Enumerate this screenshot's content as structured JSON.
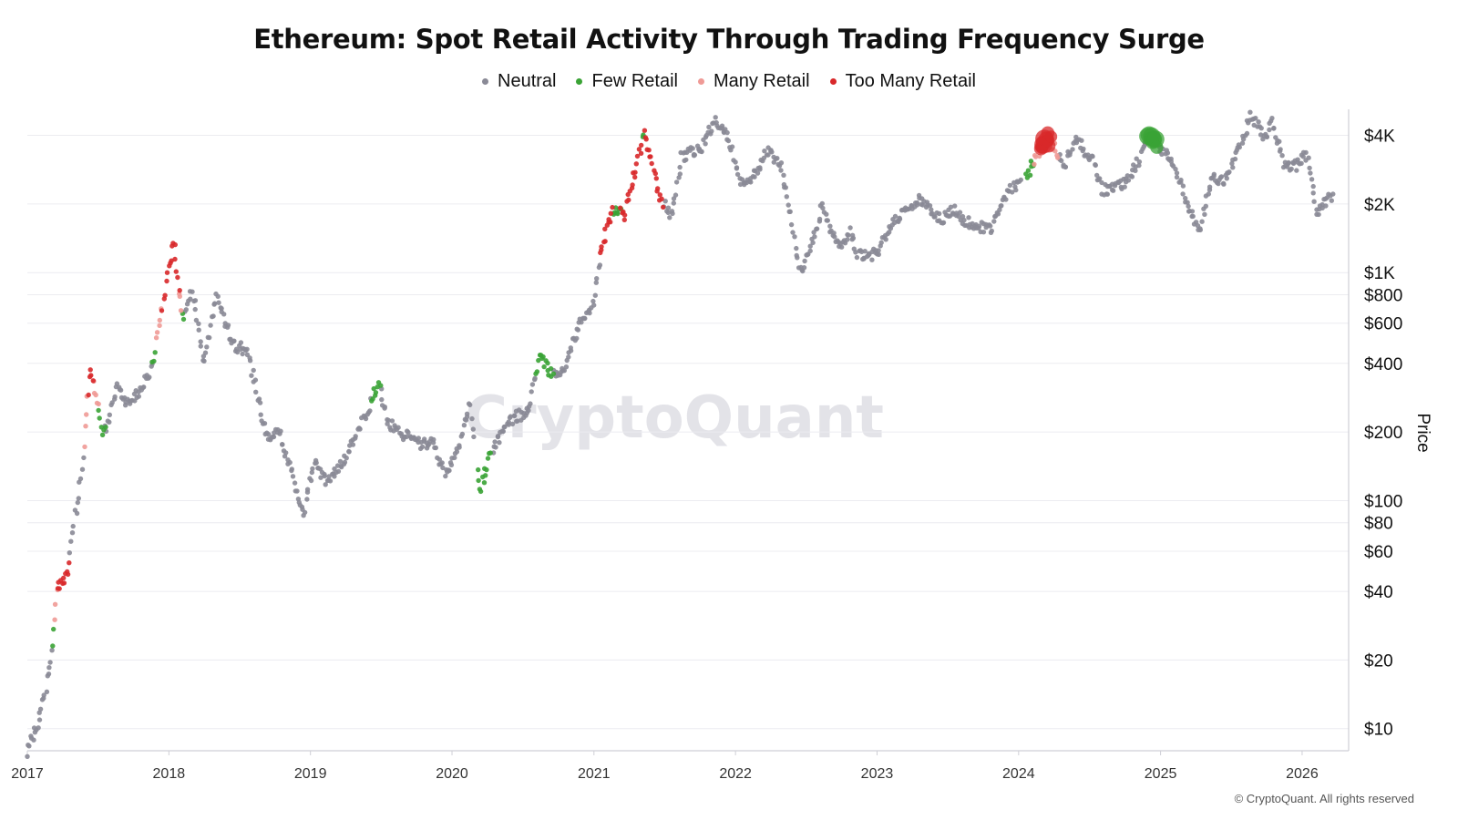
{
  "chart_data": {
    "type": "scatter",
    "title": "Ethereum: Spot Retail Activity Through Trading Frequency Surge",
    "ylabel": "Price",
    "yscale": "log",
    "ylim": [
      8,
      5200
    ],
    "xlim": [
      "2017-01-01",
      "2026-05-01"
    ],
    "yticks": [
      10,
      20,
      40,
      60,
      80,
      100,
      200,
      400,
      600,
      800,
      1000,
      2000,
      4000
    ],
    "ytick_labels": [
      "$10",
      "$20",
      "$40",
      "$60",
      "$80",
      "$100",
      "$200",
      "$400",
      "$600",
      "$800",
      "$1K",
      "$2K",
      "$4K"
    ],
    "xticks": [
      "2017-01-01",
      "2018-01-01",
      "2019-01-01",
      "2020-01-01",
      "2021-01-01",
      "2022-01-01",
      "2023-01-01",
      "2024-01-01",
      "2025-01-01",
      "2026-01-01"
    ],
    "xtick_labels": [
      "2017",
      "2018",
      "2019",
      "2020",
      "2021",
      "2022",
      "2023",
      "2024",
      "2025",
      "2026"
    ],
    "grid": true,
    "legend_position": "top-center",
    "price_path": [
      [
        "2017-01-01",
        8
      ],
      [
        "2017-02-01",
        11
      ],
      [
        "2017-03-01",
        19
      ],
      [
        "2017-03-20",
        42
      ],
      [
        "2017-04-15",
        48
      ],
      [
        "2017-05-01",
        80
      ],
      [
        "2017-05-20",
        125
      ],
      [
        "2017-06-12",
        390
      ],
      [
        "2017-07-15",
        190
      ],
      [
        "2017-08-01",
        230
      ],
      [
        "2017-08-20",
        310
      ],
      [
        "2017-09-15",
        270
      ],
      [
        "2017-10-15",
        300
      ],
      [
        "2017-11-15",
        360
      ],
      [
        "2017-12-15",
        700
      ],
      [
        "2018-01-13",
        1380
      ],
      [
        "2018-02-06",
        620
      ],
      [
        "2018-03-01",
        860
      ],
      [
        "2018-04-01",
        390
      ],
      [
        "2018-05-05",
        800
      ],
      [
        "2018-06-15",
        480
      ],
      [
        "2018-07-20",
        460
      ],
      [
        "2018-08-20",
        275
      ],
      [
        "2018-09-12",
        185
      ],
      [
        "2018-10-10",
        210
      ],
      [
        "2018-11-15",
        130
      ],
      [
        "2018-12-14",
        85
      ],
      [
        "2019-01-10",
        150
      ],
      [
        "2019-02-10",
        120
      ],
      [
        "2019-03-15",
        138
      ],
      [
        "2019-04-15",
        170
      ],
      [
        "2019-05-15",
        220
      ],
      [
        "2019-06-25",
        330
      ],
      [
        "2019-07-20",
        220
      ],
      [
        "2019-08-15",
        200
      ],
      [
        "2019-09-15",
        190
      ],
      [
        "2019-10-15",
        175
      ],
      [
        "2019-11-15",
        180
      ],
      [
        "2019-12-15",
        130
      ],
      [
        "2020-01-15",
        165
      ],
      [
        "2020-02-15",
        265
      ],
      [
        "2020-03-13",
        110
      ],
      [
        "2020-04-15",
        170
      ],
      [
        "2020-05-15",
        205
      ],
      [
        "2020-06-15",
        235
      ],
      [
        "2020-07-15",
        240
      ],
      [
        "2020-08-15",
        430
      ],
      [
        "2020-09-15",
        360
      ],
      [
        "2020-10-15",
        380
      ],
      [
        "2020-11-25",
        600
      ],
      [
        "2020-12-31",
        735
      ],
      [
        "2021-01-20",
        1300
      ],
      [
        "2021-02-20",
        1900
      ],
      [
        "2021-03-20",
        1800
      ],
      [
        "2021-05-12",
        4200
      ],
      [
        "2021-06-20",
        2100
      ],
      [
        "2021-07-20",
        1800
      ],
      [
        "2021-08-15",
        3200
      ],
      [
        "2021-09-10",
        3400
      ],
      [
        "2021-10-10",
        3600
      ],
      [
        "2021-11-10",
        4800
      ],
      [
        "2021-12-15",
        3900
      ],
      [
        "2022-01-20",
        2400
      ],
      [
        "2022-02-20",
        2700
      ],
      [
        "2022-03-28",
        3450
      ],
      [
        "2022-05-01",
        2800
      ],
      [
        "2022-05-20",
        1950
      ],
      [
        "2022-06-18",
        1000
      ],
      [
        "2022-07-15",
        1300
      ],
      [
        "2022-08-13",
        1950
      ],
      [
        "2022-09-20",
        1300
      ],
      [
        "2022-10-25",
        1500
      ],
      [
        "2022-11-10",
        1200
      ],
      [
        "2022-12-30",
        1200
      ],
      [
        "2023-02-15",
        1650
      ],
      [
        "2023-04-15",
        2100
      ],
      [
        "2023-06-15",
        1700
      ],
      [
        "2023-07-15",
        1900
      ],
      [
        "2023-08-20",
        1650
      ],
      [
        "2023-10-20",
        1550
      ],
      [
        "2023-12-10",
        2300
      ],
      [
        "2024-01-15",
        2500
      ],
      [
        "2024-03-13",
        4000
      ],
      [
        "2024-05-01",
        2950
      ],
      [
        "2024-05-27",
        3900
      ],
      [
        "2024-07-10",
        3100
      ],
      [
        "2024-08-05",
        2300
      ],
      [
        "2024-09-10",
        2350
      ],
      [
        "2024-10-15",
        2600
      ],
      [
        "2024-12-05",
        4000
      ],
      [
        "2025-01-15",
        3300
      ],
      [
        "2025-02-15",
        2700
      ],
      [
        "2025-03-15",
        1900
      ],
      [
        "2025-04-09",
        1500
      ],
      [
        "2025-05-15",
        2600
      ],
      [
        "2025-06-15",
        2500
      ],
      [
        "2025-07-15",
        3300
      ],
      [
        "2025-08-24",
        4900
      ],
      [
        "2025-09-25",
        3900
      ],
      [
        "2025-10-15",
        4500
      ],
      [
        "2025-11-15",
        3000
      ],
      [
        "2025-12-15",
        2950
      ],
      [
        "2026-01-15",
        3300
      ],
      [
        "2026-02-06",
        1850
      ],
      [
        "2026-03-20",
        2200
      ]
    ],
    "series": [
      {
        "name": "Neutral",
        "color": "#8a8a96",
        "marker_scale": 1.0,
        "ranges": [
          [
            "2017-01-01",
            "2017-03-05"
          ],
          [
            "2017-04-22",
            "2017-05-25"
          ],
          [
            "2017-07-22",
            "2017-11-20"
          ],
          [
            "2018-02-12",
            "2019-06-05"
          ],
          [
            "2019-07-01",
            "2020-02-28"
          ],
          [
            "2020-04-15",
            "2020-08-05"
          ],
          [
            "2020-09-20",
            "2021-01-15"
          ],
          [
            "2021-07-01",
            "2024-01-05"
          ],
          [
            "2024-04-15",
            "2024-11-25"
          ],
          [
            "2024-12-25",
            "2026-03-20"
          ]
        ]
      },
      {
        "name": "Few Retail",
        "color": "#3aa335",
        "marker_scale": 1.0,
        "ranges": [
          [
            "2017-03-06",
            "2017-03-11"
          ],
          [
            "2017-07-05",
            "2017-07-20"
          ],
          [
            "2017-11-20",
            "2017-11-28"
          ],
          [
            "2018-02-05",
            "2018-02-10"
          ],
          [
            "2019-06-08",
            "2019-06-30"
          ],
          [
            "2020-03-08",
            "2020-04-10"
          ],
          [
            "2020-08-06",
            "2020-09-18"
          ],
          [
            "2021-02-20",
            "2021-03-10"
          ],
          [
            "2021-05-05",
            "2021-05-10"
          ],
          [
            "2024-01-20",
            "2024-02-10"
          ],
          [
            "2024-11-28",
            "2024-12-22"
          ]
        ],
        "big_ranges": [
          [
            "2024-11-28",
            "2024-12-22"
          ]
        ]
      },
      {
        "name": "Many Retail",
        "color": "#ef9a96",
        "marker_scale": 1.0,
        "ranges": [
          [
            "2017-03-12",
            "2017-03-18"
          ],
          [
            "2017-05-27",
            "2017-06-05"
          ],
          [
            "2017-06-20",
            "2017-07-04"
          ],
          [
            "2017-12-01",
            "2017-12-15"
          ],
          [
            "2018-01-28",
            "2018-02-04"
          ],
          [
            "2024-02-10",
            "2024-02-25"
          ],
          [
            "2024-03-25",
            "2024-04-12"
          ]
        ]
      },
      {
        "name": "Too Many Retail",
        "color": "#d8282a",
        "marker_scale": 1.0,
        "ranges": [
          [
            "2017-03-19",
            "2017-04-20"
          ],
          [
            "2017-06-06",
            "2017-06-19"
          ],
          [
            "2017-12-16",
            "2018-01-27"
          ],
          [
            "2021-01-16",
            "2021-02-19"
          ],
          [
            "2021-03-11",
            "2021-05-04"
          ],
          [
            "2021-05-11",
            "2021-06-28"
          ],
          [
            "2024-02-26",
            "2024-03-24"
          ]
        ],
        "big_ranges": [
          [
            "2024-02-26",
            "2024-03-24"
          ]
        ]
      }
    ]
  },
  "watermark": "CryptoQuant",
  "footer": "© CryptoQuant. All rights reserved"
}
